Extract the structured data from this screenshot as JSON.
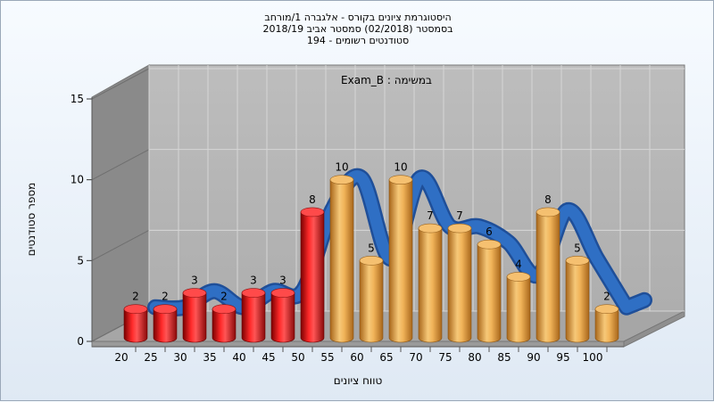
{
  "chart_data": {
    "type": "bar",
    "title_lines": [
      "היסטוגרמת ציונים בקורס - אלגברה 1/מורחב",
      "בסמסטר  (02/2018)  סמסטר אביב 2018/19",
      "סטודנטים רשומים - 194"
    ],
    "annotation": "במשימה : Exam_B",
    "ylabel": "מספר סטודנטים",
    "xlabel": "טווח ציונים",
    "ylim": [
      0,
      15
    ],
    "yticks": [
      "0",
      "5",
      "10",
      "15"
    ],
    "categories": [
      "20",
      "25",
      "30",
      "35",
      "40",
      "45",
      "50",
      "55",
      "60",
      "65",
      "70",
      "75",
      "80",
      "85",
      "90",
      "95",
      "100"
    ],
    "values": [
      2,
      2,
      3,
      2,
      3,
      3,
      8,
      10,
      5,
      10,
      7,
      7,
      6,
      4,
      8,
      5,
      2
    ],
    "fail_count": 7,
    "colors": {
      "fail": "#e01818",
      "pass": "#e6a546",
      "line": "#2f6fc4",
      "plot_back": "#b4b4b4",
      "side_wall": "#8a8a8a",
      "floor": "#a6a6a6"
    },
    "grid": true,
    "series_line": "smoothed distribution ribbon"
  }
}
